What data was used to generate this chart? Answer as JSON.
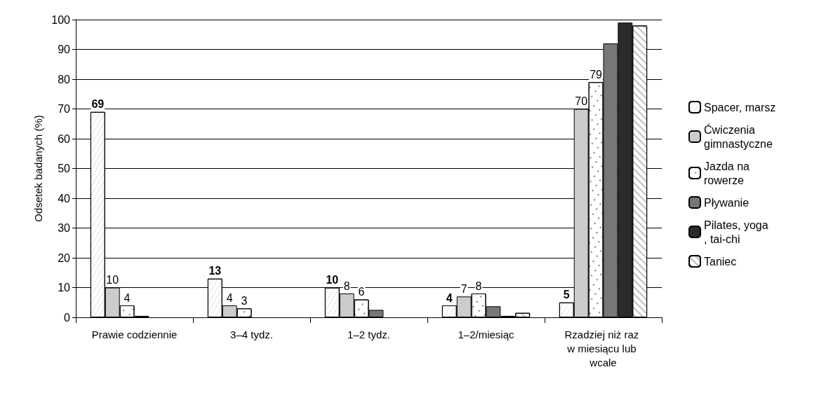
{
  "chart_data": {
    "type": "bar",
    "ylabel": "Odsetek badanych (%)",
    "categories": [
      "Prawie codziennie",
      "3–4 tydz.",
      "1–2 tydz.",
      "1–2/miesiąc",
      "Rzadziej niż raz w miesiącu lub wcale"
    ],
    "series": [
      {
        "name": "Spacer, marsz",
        "color": "#ffffff",
        "values": [
          69,
          13,
          10,
          4,
          5
        ],
        "value_labels": [
          "69",
          "13",
          "10",
          "4",
          "5"
        ]
      },
      {
        "name": "Ćwiczenia gimnastyczne",
        "color": "#cccccc",
        "values": [
          10,
          4,
          8,
          7,
          70
        ],
        "value_labels": [
          "10",
          "4",
          "8",
          "7",
          "70"
        ]
      },
      {
        "name": "Jazda na rowerze",
        "color": "#ffffff",
        "values": [
          4,
          3,
          6,
          8,
          79
        ],
        "value_labels": [
          "4",
          "3",
          "6",
          "8",
          "79"
        ]
      },
      {
        "name": "Pływanie",
        "color": "#777777",
        "values": [
          0.5,
          null,
          2.5,
          3.7,
          92
        ],
        "value_labels": [
          null,
          null,
          null,
          null,
          null
        ]
      },
      {
        "name": "Pilates, yoga, tai-chi",
        "color": "#2b2b2b",
        "values": [
          null,
          null,
          null,
          0.5,
          99
        ],
        "value_labels": [
          null,
          null,
          null,
          null,
          null
        ]
      },
      {
        "name": "Taniec",
        "color": "#ffffff",
        "values": [
          null,
          null,
          null,
          1.5,
          98
        ],
        "value_labels": [
          null,
          null,
          null,
          null,
          null
        ]
      }
    ],
    "ylim": [
      0,
      100
    ],
    "yticks": [
      0,
      10,
      20,
      30,
      40,
      50,
      60,
      70,
      80,
      90,
      100
    ],
    "grid": "y",
    "legend": "right"
  }
}
